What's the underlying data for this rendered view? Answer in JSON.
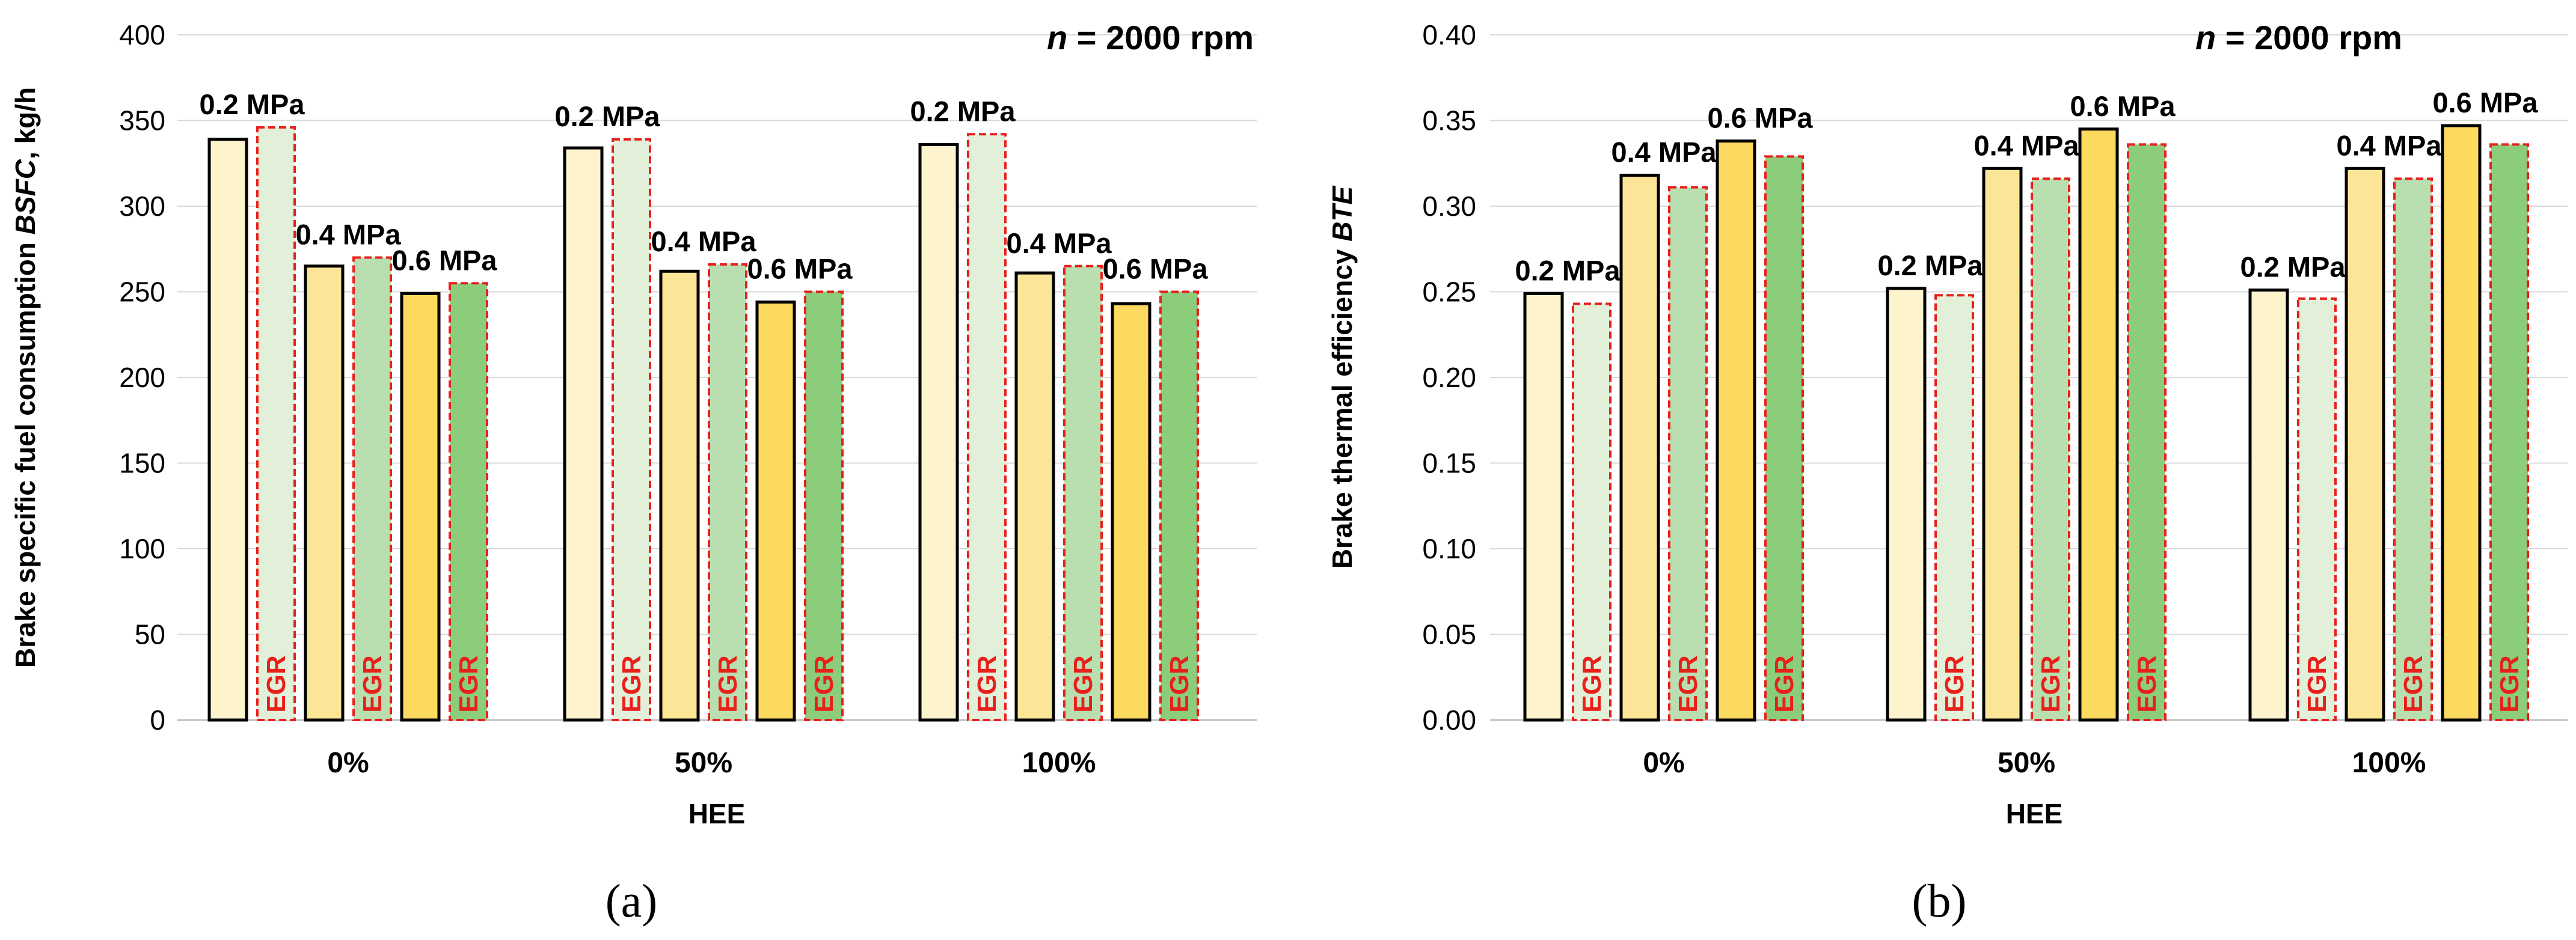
{
  "figure": {
    "panels": [
      {
        "tag": "(a)"
      },
      {
        "tag": "(b)"
      }
    ]
  },
  "colors": {
    "yellow_0.2": "#fdf3cd",
    "yellow_0.4": "#fde597",
    "yellow_0.6": "#fcd95f",
    "green_0.2": "#e2f0d9",
    "green_0.4": "#b9deb0",
    "green_0.6": "#8ccd7c",
    "egr_border": "#e8201c",
    "egr_text": "#e8201c",
    "gridline": "#d9d9d9"
  },
  "chart_data": [
    {
      "type": "bar",
      "annotation": "n = 2000 rpm",
      "annotation_italic_part": "n",
      "annotation_rest": " = 2000 rpm",
      "ylabel_parts": [
        "Brake specific fuel consumption ",
        "BSFC",
        ", kg/h"
      ],
      "xlabel": "HEE",
      "categories": [
        "0%",
        "50%",
        "100%"
      ],
      "ylim": [
        0,
        400
      ],
      "yticks": [
        "0",
        "50",
        "100",
        "150",
        "200",
        "250",
        "300",
        "350",
        "400"
      ],
      "ytick_values": [
        0,
        50,
        100,
        150,
        200,
        250,
        300,
        350,
        400
      ],
      "grid": true,
      "series": [
        {
          "load": "0.2 MPa",
          "egr": false,
          "values": [
            339,
            334,
            336
          ]
        },
        {
          "load": "0.2 MPa",
          "egr": true,
          "values": [
            346,
            339,
            342
          ]
        },
        {
          "load": "0.4 MPa",
          "egr": false,
          "values": [
            265,
            262,
            261
          ]
        },
        {
          "load": "0.4 MPa",
          "egr": true,
          "values": [
            270,
            266,
            265
          ]
        },
        {
          "load": "0.6 MPa",
          "egr": false,
          "values": [
            249,
            244,
            243
          ]
        },
        {
          "load": "0.6 MPa",
          "egr": true,
          "values": [
            255,
            250,
            250
          ]
        }
      ],
      "bar_labels": [
        "0.2 MPa",
        "0.4 MPa",
        "0.6 MPa"
      ],
      "egr_label": "EGR"
    },
    {
      "type": "bar",
      "annotation": "n = 2000 rpm",
      "annotation_italic_part": "n",
      "annotation_rest": " = 2000 rpm",
      "ylabel_parts": [
        "Brake thermal efficiency ",
        "BTE",
        ""
      ],
      "xlabel": "HEE",
      "categories": [
        "0%",
        "50%",
        "100%"
      ],
      "ylim": [
        0,
        0.4
      ],
      "yticks": [
        "0.00",
        "0.05",
        "0.10",
        "0.15",
        "0.20",
        "0.25",
        "0.30",
        "0.35",
        "0.40"
      ],
      "ytick_values": [
        0,
        0.05,
        0.1,
        0.15,
        0.2,
        0.25,
        0.3,
        0.35,
        0.4
      ],
      "grid": true,
      "series": [
        {
          "load": "0.2 MPa",
          "egr": false,
          "values": [
            0.249,
            0.252,
            0.251
          ]
        },
        {
          "load": "0.2 MPa",
          "egr": true,
          "values": [
            0.243,
            0.248,
            0.246
          ]
        },
        {
          "load": "0.4 MPa",
          "egr": false,
          "values": [
            0.318,
            0.322,
            0.322
          ]
        },
        {
          "load": "0.4 MPa",
          "egr": true,
          "values": [
            0.311,
            0.316,
            0.316
          ]
        },
        {
          "load": "0.6 MPa",
          "egr": false,
          "values": [
            0.338,
            0.345,
            0.347
          ]
        },
        {
          "load": "0.6 MPa",
          "egr": true,
          "values": [
            0.329,
            0.336,
            0.336
          ]
        }
      ],
      "bar_labels": [
        "0.2 MPa",
        "0.4 MPa",
        "0.6 MPa"
      ],
      "egr_label": "EGR"
    }
  ]
}
